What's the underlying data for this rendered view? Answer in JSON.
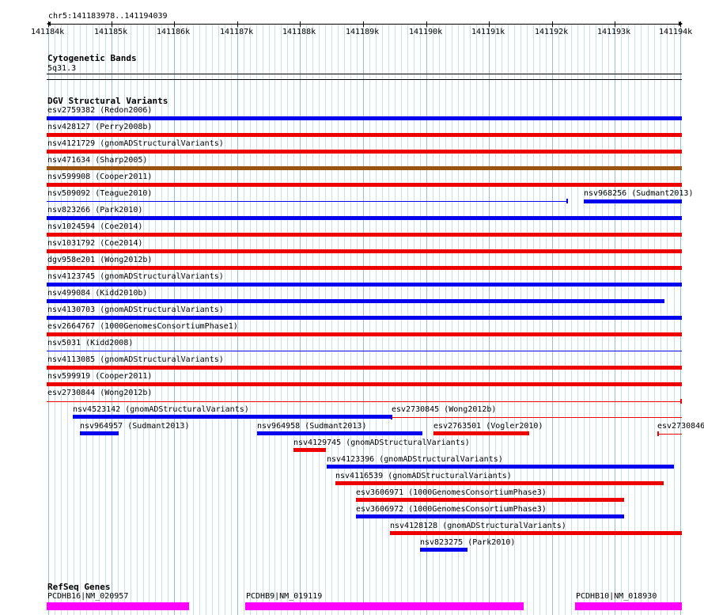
{
  "ruler": {
    "location": "chr5:141183978..141194039",
    "ticks": [
      "141184k",
      "141185k",
      "141186k",
      "141187k",
      "141188k",
      "141189k",
      "141190k",
      "141191k",
      "141192k",
      "141193k",
      "141194k"
    ]
  },
  "tracks": {
    "cyto": {
      "title": "Cytogenetic Bands",
      "band": "5q31.3"
    },
    "dgv": {
      "title": "DGV Structural Variants"
    },
    "refseq": {
      "title": "RefSeq Genes"
    }
  },
  "variants": [
    {
      "label": "esv2759382 (Redon2006)",
      "color": "#0000ee"
    },
    {
      "label": "nsv428127 (Perry2008b)",
      "color": "#ee0000"
    },
    {
      "label": "nsv4121729 (gnomADStructuralVariants)",
      "color": "#ee0000"
    },
    {
      "label": "nsv471634 (Sharp2005)",
      "color": "#995511"
    },
    {
      "label": "nsv599908 (Cooper2011)",
      "color": "#ee0000"
    },
    {
      "label": "nsv509092 (Teague2010)",
      "color": "#0000ee"
    },
    {
      "label": "nsv968256 (Sudmant2013)",
      "color": "#0000ee"
    },
    {
      "label": "nsv823266 (Park2010)",
      "color": "#0000ee"
    },
    {
      "label": "nsv1024594 (Coe2014)",
      "color": "#ee0000"
    },
    {
      "label": "nsv1031792 (Coe2014)",
      "color": "#ee0000"
    },
    {
      "label": "dgv958e201 (Wong2012b)",
      "color": "#ee0000"
    },
    {
      "label": "nsv4123745 (gnomADStructuralVariants)",
      "color": "#0000ee"
    },
    {
      "label": "nsv499084 (Kidd2010b)",
      "color": "#0000ee"
    },
    {
      "label": "nsv4130703 (gnomADStructuralVariants)",
      "color": "#0000ee"
    },
    {
      "label": "esv2664767 (1000GenomesConsortiumPhase1)",
      "color": "#ee0000"
    },
    {
      "label": "nsv5031 (Kidd2008)",
      "color": "#0000ee"
    },
    {
      "label": "nsv4113085 (gnomADStructuralVariants)",
      "color": "#ee0000"
    },
    {
      "label": "nsv599919 (Cooper2011)",
      "color": "#ee0000"
    },
    {
      "label": "esv2730844 (Wong2012b)",
      "color": "#ee0000"
    },
    {
      "label": "nsv4523142 (gnomADStructuralVariants)",
      "color": "#0000ee"
    },
    {
      "label": "esv2730845 (Wong2012b)",
      "color": "#ee0000"
    },
    {
      "label": "nsv964957 (Sudmant2013)",
      "color": "#0000ee"
    },
    {
      "label": "nsv964958 (Sudmant2013)",
      "color": "#0000ee"
    },
    {
      "label": "esv2763501 (Vogler2010)",
      "color": "#ee0000"
    },
    {
      "label": "esv2730846",
      "color": "#ee0000"
    },
    {
      "label": "nsv4129745 (gnomADStructuralVariants)",
      "color": "#ee0000"
    },
    {
      "label": "nsv4123396 (gnomADStructuralVariants)",
      "color": "#0000ee"
    },
    {
      "label": "nsv4116539 (gnomADStructuralVariants)",
      "color": "#ee0000"
    },
    {
      "label": "esv3606971 (1000GenomesConsortiumPhase3)",
      "color": "#ee0000"
    },
    {
      "label": "esv3606972 (1000GenomesConsortiumPhase3)",
      "color": "#0000ee"
    },
    {
      "label": "nsv4128128 (gnomADStructuralVariants)",
      "color": "#ee0000"
    },
    {
      "label": "nsv823275 (Park2010)",
      "color": "#0000ee"
    }
  ],
  "genes": [
    {
      "label": "PCDHB16|NM_020957",
      "color": "#ff00ff"
    },
    {
      "label": "PCDHB9|NM_019119",
      "color": "#ff00ff"
    },
    {
      "label": "PCDHB10|NM_018930",
      "color": "#ff00ff"
    }
  ]
}
